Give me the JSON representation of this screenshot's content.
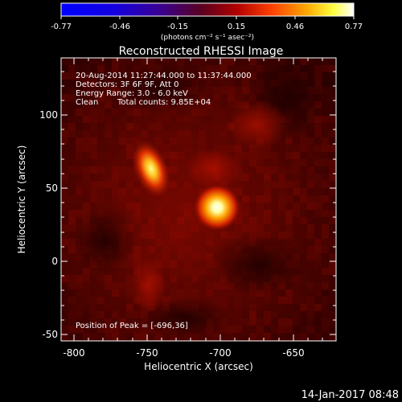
{
  "colorbar": {
    "tick_labels": [
      "-0.77",
      "-0.46",
      "-0.15",
      "0.15",
      "0.46",
      "0.77"
    ],
    "units": "(photons cm⁻² s⁻¹ asec⁻²)"
  },
  "title": "Reconstructed RHESSI Image",
  "annotations": {
    "line1": "20-Aug-2014 11:27:44.000 to 11:37:44.000",
    "line2": "Detectors: 3F 6F 9F, Att 0",
    "line3": "Energy Range: 3.0 - 6.0 keV",
    "line4_left": "Clean",
    "line4_right": "Total counts: 9.85E+04",
    "peak": "Position of Peak = [-696,36]"
  },
  "axes": {
    "xlabel": "Heliocentric X (arcsec)",
    "ylabel": "Heliocentric Y (arcsec)",
    "x_ticks": [
      "-800",
      "-750",
      "-700",
      "-650"
    ],
    "y_ticks": [
      "100",
      "50",
      "0",
      "-50"
    ]
  },
  "timestamp": "14-Jan-2017 08:48",
  "colors": {
    "background": "#000000",
    "foreground": "#ffffff"
  }
}
